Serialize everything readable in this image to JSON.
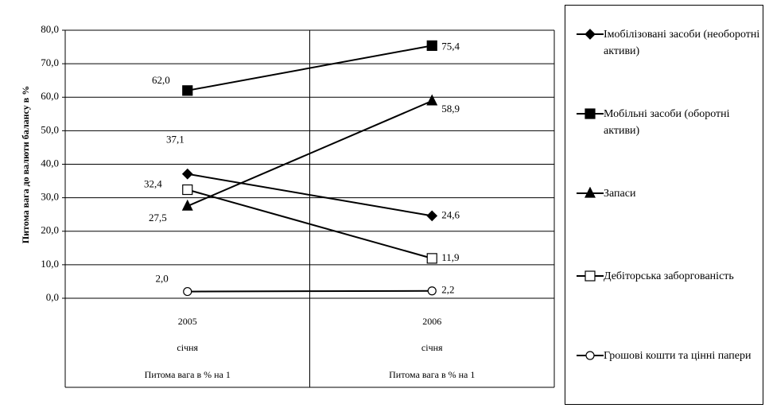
{
  "chart_data": {
    "type": "line",
    "y_label": "Питома вага до валюти балансу в %",
    "categories": [
      "2005",
      "2006"
    ],
    "category_sublabels": [
      [
        "січня",
        "січня"
      ],
      [
        "Питома вага в % на 1",
        "Питома вага в % на 1"
      ]
    ],
    "ylim": [
      0,
      80
    ],
    "yticks": [
      {
        "value": 0,
        "label": "0,0"
      },
      {
        "value": 10,
        "label": "10,0"
      },
      {
        "value": 20,
        "label": "20,0"
      },
      {
        "value": 30,
        "label": "30,0"
      },
      {
        "value": 40,
        "label": "40,0"
      },
      {
        "value": 50,
        "label": "50,0"
      },
      {
        "value": 60,
        "label": "60,0"
      },
      {
        "value": 70,
        "label": "70,0"
      },
      {
        "value": 80,
        "label": "80,0"
      }
    ],
    "grid": true,
    "series": [
      {
        "name": "Імобілізовані засоби (необоротні активи)",
        "color": "#000000",
        "marker": "diamond",
        "values": [
          37.1,
          24.6
        ],
        "value_labels": [
          "37,1",
          "24,6"
        ]
      },
      {
        "name": "Мобільні засоби (оборотні активи)",
        "color": "#000000",
        "marker": "square",
        "values": [
          62.0,
          75.4
        ],
        "value_labels": [
          "62,0",
          "75,4"
        ]
      },
      {
        "name": "Запаси",
        "color": "#000000",
        "marker": "triangle",
        "values": [
          27.5,
          58.9
        ],
        "value_labels": [
          "27,5",
          "58,9"
        ]
      },
      {
        "name": "Дебіторська заборгованість",
        "color": "#000000",
        "marker": "open-square",
        "values": [
          32.4,
          11.9
        ],
        "value_labels": [
          "32,4",
          "11,9"
        ]
      },
      {
        "name": "Грошові кошти та цінні папери",
        "color": "#000000",
        "marker": "open-circle",
        "values": [
          2.0,
          2.2
        ],
        "value_labels": [
          "2,0",
          "2,2"
        ]
      }
    ]
  }
}
